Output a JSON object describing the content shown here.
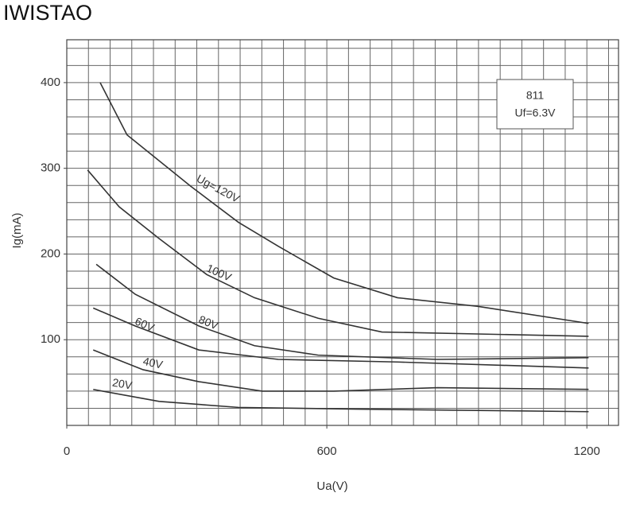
{
  "brand": "IWISTAO",
  "chart_data": {
    "type": "line",
    "x_label": "Ua(V)",
    "y_label": "Ig(mA)",
    "annotation": [
      "811",
      "Uf=6.3V"
    ],
    "xlim": [
      0,
      1273
    ],
    "ylim": [
      0,
      450
    ],
    "xticks": [
      0,
      600,
      1200
    ],
    "yticks": [
      100,
      200,
      300,
      400
    ],
    "grid": true,
    "minor_grid": {
      "x": 50,
      "y": 20
    },
    "series": [
      {
        "name": "Ug=120V",
        "color": "#333333",
        "x": [
          77,
          139,
          286,
          396,
          488,
          616,
          763,
          947,
          1204
        ],
        "values": [
          400,
          339,
          279,
          237,
          209,
          172,
          149,
          139,
          119
        ]
      },
      {
        "name": "100V",
        "color": "#333333",
        "x": [
          48,
          121,
          213,
          323,
          433,
          580,
          727,
          1204
        ],
        "values": [
          298,
          255,
          218,
          176,
          149,
          125,
          109,
          104
        ]
      },
      {
        "name": "80V",
        "color": "#333333",
        "x": [
          68,
          158,
          305,
          433,
          580,
          855,
          1204
        ],
        "values": [
          188,
          153,
          116,
          93,
          82,
          77,
          79
        ]
      },
      {
        "name": "60V",
        "color": "#333333",
        "x": [
          61,
          158,
          305,
          488,
          763,
          1204
        ],
        "values": [
          137,
          116,
          88,
          77,
          74,
          67
        ]
      },
      {
        "name": "40V",
        "color": "#333333",
        "x": [
          61,
          176,
          305,
          451,
          616,
          855,
          1204
        ],
        "values": [
          88,
          65,
          51,
          40,
          40,
          44,
          42
        ]
      },
      {
        "name": "20V",
        "color": "#333333",
        "x": [
          61,
          213,
          396,
          672,
          1204
        ],
        "values": [
          42,
          28,
          21,
          19,
          16
        ]
      }
    ]
  }
}
